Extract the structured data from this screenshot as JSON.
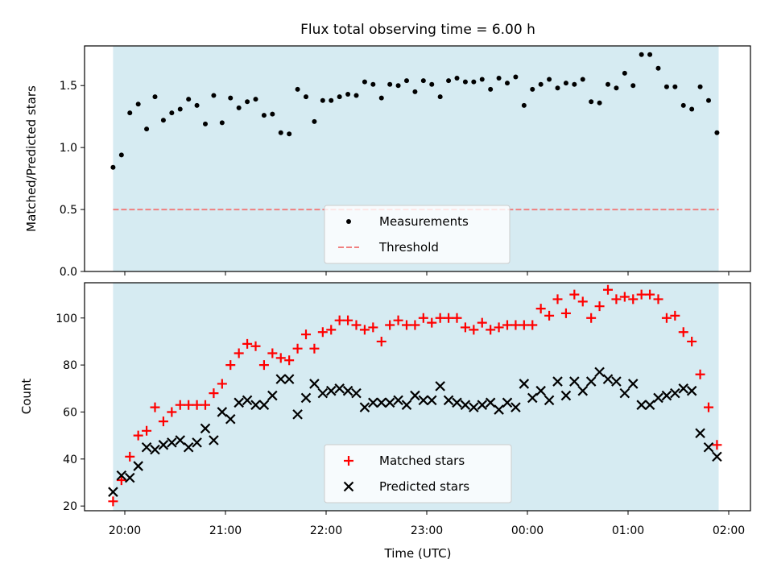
{
  "chart_data": {
    "title": "Flux total observing time = 6.00 h",
    "xlabel": "Time (UTC)",
    "x_tick_labels": [
      "20:00",
      "21:00",
      "22:00",
      "23:00",
      "00:00",
      "01:00",
      "02:00"
    ],
    "observing_window": [
      "19:53",
      "01:54"
    ],
    "window_color": "#add8e6",
    "panels": [
      {
        "type": "scatter",
        "ylabel": "Matched/Predicted stars",
        "ylim": [
          0,
          1.82
        ],
        "y_ticks": [
          0.0,
          0.5,
          1.0,
          1.5
        ],
        "y_tick_labels": [
          "0.0",
          "0.5",
          "1.0",
          "1.5"
        ],
        "legend_position": "lower-center",
        "series": [
          {
            "name": "Measurements",
            "marker": "dot",
            "color": "#000000",
            "points": [
              [
                "19:53",
                0.84
              ],
              [
                "19:58",
                0.94
              ],
              [
                "20:03",
                1.28
              ],
              [
                "20:08",
                1.35
              ],
              [
                "20:13",
                1.15
              ],
              [
                "20:18",
                1.41
              ],
              [
                "20:23",
                1.22
              ],
              [
                "20:28",
                1.28
              ],
              [
                "20:33",
                1.31
              ],
              [
                "20:38",
                1.39
              ],
              [
                "20:43",
                1.34
              ],
              [
                "20:48",
                1.19
              ],
              [
                "20:53",
                1.42
              ],
              [
                "20:58",
                1.2
              ],
              [
                "21:03",
                1.4
              ],
              [
                "21:08",
                1.32
              ],
              [
                "21:13",
                1.37
              ],
              [
                "21:18",
                1.39
              ],
              [
                "21:23",
                1.26
              ],
              [
                "21:28",
                1.27
              ],
              [
                "21:33",
                1.12
              ],
              [
                "21:38",
                1.11
              ],
              [
                "21:43",
                1.47
              ],
              [
                "21:48",
                1.41
              ],
              [
                "21:53",
                1.21
              ],
              [
                "21:58",
                1.38
              ],
              [
                "22:03",
                1.38
              ],
              [
                "22:08",
                1.41
              ],
              [
                "22:13",
                1.43
              ],
              [
                "22:18",
                1.42
              ],
              [
                "22:23",
                1.53
              ],
              [
                "22:28",
                1.51
              ],
              [
                "22:33",
                1.4
              ],
              [
                "22:38",
                1.51
              ],
              [
                "22:43",
                1.5
              ],
              [
                "22:48",
                1.54
              ],
              [
                "22:53",
                1.45
              ],
              [
                "22:58",
                1.54
              ],
              [
                "23:03",
                1.51
              ],
              [
                "23:08",
                1.41
              ],
              [
                "23:13",
                1.54
              ],
              [
                "23:18",
                1.56
              ],
              [
                "23:23",
                1.53
              ],
              [
                "23:28",
                1.53
              ],
              [
                "23:33",
                1.55
              ],
              [
                "23:38",
                1.47
              ],
              [
                "23:43",
                1.56
              ],
              [
                "23:48",
                1.52
              ],
              [
                "23:53",
                1.57
              ],
              [
                "23:58",
                1.34
              ],
              [
                "00:03",
                1.47
              ],
              [
                "00:08",
                1.51
              ],
              [
                "00:13",
                1.55
              ],
              [
                "00:18",
                1.48
              ],
              [
                "00:23",
                1.52
              ],
              [
                "00:28",
                1.51
              ],
              [
                "00:33",
                1.55
              ],
              [
                "00:38",
                1.37
              ],
              [
                "00:43",
                1.36
              ],
              [
                "00:48",
                1.51
              ],
              [
                "00:53",
                1.48
              ],
              [
                "00:58",
                1.6
              ],
              [
                "01:03",
                1.5
              ],
              [
                "01:08",
                1.75
              ],
              [
                "01:13",
                1.75
              ],
              [
                "01:18",
                1.64
              ],
              [
                "01:23",
                1.49
              ],
              [
                "01:28",
                1.49
              ],
              [
                "01:33",
                1.34
              ],
              [
                "01:38",
                1.31
              ],
              [
                "01:43",
                1.49
              ],
              [
                "01:48",
                1.38
              ],
              [
                "01:53",
                1.12
              ]
            ]
          },
          {
            "name": "Threshold",
            "marker": "dashed-line",
            "color": "#f08080",
            "value": 0.5
          }
        ]
      },
      {
        "type": "scatter",
        "ylabel": "Count",
        "ylim": [
          18,
          115
        ],
        "y_ticks": [
          20,
          40,
          60,
          80,
          100
        ],
        "y_tick_labels": [
          "20",
          "40",
          "60",
          "80",
          "100"
        ],
        "legend_position": "lower-center",
        "series": [
          {
            "name": "Matched stars",
            "marker": "plus",
            "color": "#ff0000",
            "points": [
              [
                "19:53",
                22
              ],
              [
                "19:58",
                31
              ],
              [
                "20:03",
                41
              ],
              [
                "20:08",
                50
              ],
              [
                "20:13",
                52
              ],
              [
                "20:18",
                62
              ],
              [
                "20:23",
                56
              ],
              [
                "20:28",
                60
              ],
              [
                "20:33",
                63
              ],
              [
                "20:38",
                63
              ],
              [
                "20:43",
                63
              ],
              [
                "20:48",
                63
              ],
              [
                "20:53",
                68
              ],
              [
                "20:58",
                72
              ],
              [
                "21:03",
                80
              ],
              [
                "21:08",
                85
              ],
              [
                "21:13",
                89
              ],
              [
                "21:18",
                88
              ],
              [
                "21:23",
                80
              ],
              [
                "21:28",
                85
              ],
              [
                "21:33",
                83
              ],
              [
                "21:38",
                82
              ],
              [
                "21:43",
                87
              ],
              [
                "21:48",
                93
              ],
              [
                "21:53",
                87
              ],
              [
                "21:58",
                94
              ],
              [
                "22:03",
                95
              ],
              [
                "22:08",
                99
              ],
              [
                "22:13",
                99
              ],
              [
                "22:18",
                97
              ],
              [
                "22:23",
                95
              ],
              [
                "22:28",
                96
              ],
              [
                "22:33",
                90
              ],
              [
                "22:38",
                97
              ],
              [
                "22:43",
                99
              ],
              [
                "22:48",
                97
              ],
              [
                "22:53",
                97
              ],
              [
                "22:58",
                100
              ],
              [
                "23:03",
                98
              ],
              [
                "23:08",
                100
              ],
              [
                "23:13",
                100
              ],
              [
                "23:18",
                100
              ],
              [
                "23:23",
                96
              ],
              [
                "23:28",
                95
              ],
              [
                "23:33",
                98
              ],
              [
                "23:38",
                95
              ],
              [
                "23:43",
                96
              ],
              [
                "23:48",
                97
              ],
              [
                "23:53",
                97
              ],
              [
                "23:58",
                97
              ],
              [
                "00:03",
                97
              ],
              [
                "00:08",
                104
              ],
              [
                "00:13",
                101
              ],
              [
                "00:18",
                108
              ],
              [
                "00:23",
                102
              ],
              [
                "00:28",
                110
              ],
              [
                "00:33",
                107
              ],
              [
                "00:38",
                100
              ],
              [
                "00:43",
                105
              ],
              [
                "00:48",
                112
              ],
              [
                "00:53",
                108
              ],
              [
                "00:58",
                109
              ],
              [
                "01:03",
                108
              ],
              [
                "01:08",
                110
              ],
              [
                "01:13",
                110
              ],
              [
                "01:18",
                108
              ],
              [
                "01:23",
                100
              ],
              [
                "01:28",
                101
              ],
              [
                "01:33",
                94
              ],
              [
                "01:38",
                90
              ],
              [
                "01:43",
                76
              ],
              [
                "01:48",
                62
              ],
              [
                "01:53",
                46
              ]
            ]
          },
          {
            "name": "Predicted stars",
            "marker": "x",
            "color": "#000000",
            "points": [
              [
                "19:53",
                26
              ],
              [
                "19:58",
                33
              ],
              [
                "20:03",
                32
              ],
              [
                "20:08",
                37
              ],
              [
                "20:13",
                45
              ],
              [
                "20:18",
                44
              ],
              [
                "20:23",
                46
              ],
              [
                "20:28",
                47
              ],
              [
                "20:33",
                48
              ],
              [
                "20:38",
                45
              ],
              [
                "20:43",
                47
              ],
              [
                "20:48",
                53
              ],
              [
                "20:53",
                48
              ],
              [
                "20:58",
                60
              ],
              [
                "21:03",
                57
              ],
              [
                "21:08",
                64
              ],
              [
                "21:13",
                65
              ],
              [
                "21:18",
                63
              ],
              [
                "21:23",
                63
              ],
              [
                "21:28",
                67
              ],
              [
                "21:33",
                74
              ],
              [
                "21:38",
                74
              ],
              [
                "21:43",
                59
              ],
              [
                "21:48",
                66
              ],
              [
                "21:53",
                72
              ],
              [
                "21:58",
                68
              ],
              [
                "22:03",
                69
              ],
              [
                "22:08",
                70
              ],
              [
                "22:13",
                69
              ],
              [
                "22:18",
                68
              ],
              [
                "22:23",
                62
              ],
              [
                "22:28",
                64
              ],
              [
                "22:33",
                64
              ],
              [
                "22:38",
                64
              ],
              [
                "22:43",
                65
              ],
              [
                "22:48",
                63
              ],
              [
                "22:53",
                67
              ],
              [
                "22:58",
                65
              ],
              [
                "23:03",
                65
              ],
              [
                "23:08",
                71
              ],
              [
                "23:13",
                65
              ],
              [
                "23:18",
                64
              ],
              [
                "23:23",
                63
              ],
              [
                "23:28",
                62
              ],
              [
                "23:33",
                63
              ],
              [
                "23:38",
                64
              ],
              [
                "23:43",
                61
              ],
              [
                "23:48",
                64
              ],
              [
                "23:53",
                62
              ],
              [
                "23:58",
                72
              ],
              [
                "00:03",
                66
              ],
              [
                "00:08",
                69
              ],
              [
                "00:13",
                65
              ],
              [
                "00:18",
                73
              ],
              [
                "00:23",
                67
              ],
              [
                "00:28",
                73
              ],
              [
                "00:33",
                69
              ],
              [
                "00:38",
                73
              ],
              [
                "00:43",
                77
              ],
              [
                "00:48",
                74
              ],
              [
                "00:53",
                73
              ],
              [
                "00:58",
                68
              ],
              [
                "01:03",
                72
              ],
              [
                "01:08",
                63
              ],
              [
                "01:13",
                63
              ],
              [
                "01:18",
                66
              ],
              [
                "01:23",
                67
              ],
              [
                "01:28",
                68
              ],
              [
                "01:33",
                70
              ],
              [
                "01:38",
                69
              ],
              [
                "01:43",
                51
              ],
              [
                "01:48",
                45
              ],
              [
                "01:53",
                41
              ]
            ]
          }
        ]
      }
    ]
  }
}
